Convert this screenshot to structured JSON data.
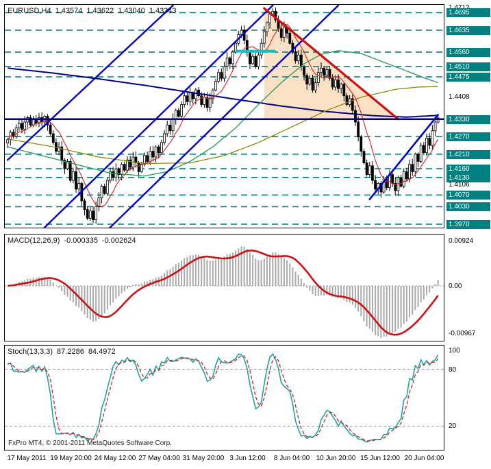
{
  "ui": {
    "title": {
      "symbol": "EURUSD,H4",
      "open": "1.43574",
      "high": "1.43622",
      "low": "1.43040",
      "close": "1.43343"
    },
    "macd_title": {
      "label": "MACD(12,26,9)",
      "main": "-0.000335",
      "signal": "-0.002624"
    },
    "stoch_title": {
      "label": "Stoch(13,3,3)",
      "k": "87.2286",
      "d": "84.4972"
    },
    "copyright": "FxPro MT4, © 2001-2011 MetaQuotes Software Corp."
  },
  "chart_data": [
    {
      "type": "candlestick",
      "symbol": "EURUSD",
      "timeframe": "H4",
      "x_labels": [
        "17 May 2011",
        "19 May 20:00",
        "24 May 12:00",
        "27 May 04:00",
        "31 May 20:00",
        "3 Jun 12:00",
        "8 Jun 04:00",
        "10 Jun 20:00",
        "15 Jun 12:00",
        "20 Jun 04:00"
      ],
      "price_range": [
        1.3958,
        1.4722
      ],
      "current_bar": {
        "open": 1.43574,
        "high": 1.43622,
        "low": 1.4304,
        "close": 1.43343
      },
      "first_open": 1.4248,
      "closes": [
        1.426,
        1.4285,
        1.427,
        1.43,
        1.4315,
        1.4295,
        1.432,
        1.4335,
        1.431,
        1.433,
        1.4315,
        1.4335,
        1.432,
        1.434,
        1.431,
        1.428,
        1.425,
        1.422,
        1.4235,
        1.419,
        1.416,
        1.4185,
        1.412,
        1.415,
        1.409,
        1.411,
        1.405,
        1.402,
        1.399,
        1.4015,
        1.3985,
        1.403,
        1.406,
        1.41,
        1.4075,
        1.412,
        1.415,
        1.413,
        1.416,
        1.414,
        1.4175,
        1.4155,
        1.419,
        1.4165,
        1.42,
        1.418,
        1.415,
        1.4175,
        1.4205,
        1.4185,
        1.422,
        1.42,
        1.4235,
        1.4215,
        1.425,
        1.428,
        1.431,
        1.429,
        1.433,
        1.436,
        1.434,
        1.438,
        1.441,
        1.439,
        1.442,
        1.44,
        1.443,
        1.441,
        1.438,
        1.4405,
        1.437,
        1.44,
        1.443,
        1.446,
        1.449,
        1.447,
        1.451,
        1.454,
        1.452,
        1.456,
        1.459,
        1.462,
        1.4635,
        1.46,
        1.456,
        1.452,
        1.4545,
        1.451,
        1.455,
        1.459,
        1.463,
        1.466,
        1.469,
        1.47,
        1.467,
        1.464,
        1.461,
        1.4645,
        1.4625,
        1.459,
        1.456,
        1.453,
        1.455,
        1.451,
        1.448,
        1.445,
        1.447,
        1.443,
        1.4455,
        1.449,
        1.4505,
        1.448,
        1.45,
        1.447,
        1.444,
        1.4465,
        1.4435,
        1.445,
        1.441,
        1.438,
        1.44,
        1.436,
        1.432,
        1.427,
        1.422,
        1.418,
        1.414,
        1.417,
        1.412,
        1.409,
        1.411,
        1.408,
        1.4125,
        1.4095,
        1.414,
        1.411,
        1.4085,
        1.413,
        1.41,
        1.415,
        1.4125,
        1.4175,
        1.415,
        1.421,
        1.4185,
        1.424,
        1.4215,
        1.4265,
        1.424,
        1.429,
        1.432,
        1.4334
      ],
      "support_resistance_levels": [
        1.4695,
        1.4635,
        1.456,
        1.451,
        1.4475,
        1.427,
        1.421,
        1.416,
        1.413,
        1.407,
        1.403,
        1.397
      ],
      "current_price_line": 1.433,
      "axis_ticks": [
        {
          "text": "1.4712",
          "price": 1.4712,
          "chip": false
        },
        {
          "text": "1.4695",
          "price": 1.4695,
          "chip": true
        },
        {
          "text": "1.4635",
          "price": 1.4635,
          "chip": true
        },
        {
          "text": "1.4560",
          "price": 1.456,
          "chip": true
        },
        {
          "text": "1.4510",
          "price": 1.451,
          "chip": true
        },
        {
          "text": "1.4475",
          "price": 1.4475,
          "chip": true
        },
        {
          "text": "1.4408",
          "price": 1.4408,
          "chip": false
        },
        {
          "text": "1.4330",
          "price": 1.433,
          "chip": true
        },
        {
          "text": "1.4270",
          "price": 1.427,
          "chip": true
        },
        {
          "text": "1.4210",
          "price": 1.421,
          "chip": true
        },
        {
          "text": "1.4160",
          "price": 1.416,
          "chip": true
        },
        {
          "text": "1.4130",
          "price": 1.413,
          "chip": true
        },
        {
          "text": "1.4106",
          "price": 1.4106,
          "chip": false
        },
        {
          "text": "1.4070",
          "price": 1.407,
          "chip": true
        },
        {
          "text": "1.4030",
          "price": 1.403,
          "chip": true
        },
        {
          "text": "1.3970",
          "price": 1.397,
          "chip": true
        }
      ],
      "moving_averages": {
        "fast_red": {
          "period": 8,
          "color": "#D43030"
        },
        "green": {
          "color": "#2E9E5B",
          "anchors": [
            [
              0,
              1.4235
            ],
            [
              12,
              1.4205
            ],
            [
              24,
              1.4175
            ],
            [
              36,
              1.4145
            ],
            [
              48,
              1.4135
            ],
            [
              56,
              1.415
            ],
            [
              64,
              1.4185
            ],
            [
              72,
              1.4235
            ],
            [
              80,
              1.43
            ],
            [
              88,
              1.438
            ],
            [
              96,
              1.4455
            ],
            [
              104,
              1.452
            ],
            [
              110,
              1.4552
            ],
            [
              116,
              1.4565
            ],
            [
              124,
              1.4555
            ],
            [
              132,
              1.4525
            ],
            [
              140,
              1.4495
            ],
            [
              146,
              1.4472
            ],
            [
              151,
              1.4455
            ]
          ]
        },
        "olive": {
          "color": "#8A8A00",
          "anchors": [
            [
              0,
              1.4262
            ],
            [
              16,
              1.4235
            ],
            [
              32,
              1.42
            ],
            [
              48,
              1.4178
            ],
            [
              64,
              1.418
            ],
            [
              76,
              1.4205
            ],
            [
              88,
              1.425
            ],
            [
              100,
              1.4305
            ],
            [
              112,
              1.436
            ],
            [
              124,
              1.4405
            ],
            [
              136,
              1.4432
            ],
            [
              144,
              1.444
            ],
            [
              151,
              1.4442
            ]
          ]
        },
        "navy": {
          "color": "#000080",
          "anchors": [
            [
              0,
              1.4505
            ],
            [
              16,
              1.4488
            ],
            [
              32,
              1.4468
            ],
            [
              48,
              1.4446
            ],
            [
              64,
              1.4422
            ],
            [
              80,
              1.4398
            ],
            [
              96,
              1.4375
            ],
            [
              112,
              1.4356
            ],
            [
              128,
              1.4342
            ],
            [
              140,
              1.4337
            ],
            [
              151,
              1.4343
            ]
          ]
        }
      },
      "trendlines": [
        {
          "name": "ascending-channel-1",
          "color": "#0000CC",
          "width": 2.4,
          "points": [
            [
              0,
              1.419
            ],
            [
              58,
              1.472
            ]
          ]
        },
        {
          "name": "ascending-channel-2",
          "color": "#0000CC",
          "width": 2.4,
          "points": [
            [
              11,
              1.394
            ],
            [
              93,
              1.472
            ]
          ]
        },
        {
          "name": "ascending-channel-3",
          "color": "#0000CC",
          "width": 2.4,
          "points": [
            [
              34,
              1.394
            ],
            [
              116,
              1.472
            ]
          ]
        },
        {
          "name": "ascending-support-june",
          "color": "#0000CC",
          "width": 2.6,
          "points": [
            [
              127,
              1.4055
            ],
            [
              151,
              1.4345
            ]
          ]
        },
        {
          "name": "descending-resistance",
          "color": "#D01010",
          "width": 3.2,
          "points": [
            [
              90,
              1.471
            ],
            [
              137,
              1.433
            ]
          ]
        }
      ],
      "shaded_triangle": {
        "color": "#F6CD9E",
        "opacity": 0.6,
        "points": [
          [
            90,
            1.471
          ],
          [
            137,
            1.433
          ],
          [
            90,
            1.433
          ]
        ]
      },
      "cyan_segment": {
        "color": "#00C8C8",
        "width": 4,
        "points": [
          [
            80,
            1.4563
          ],
          [
            94,
            1.4563
          ]
        ]
      }
    },
    {
      "type": "macd",
      "label": "MACD(12,26,9)",
      "main_value": -0.000335,
      "signal_value": -0.002624,
      "range": [
        -0.0112,
        0.0105
      ],
      "axis_ticks": [
        {
          "text": "0.00924",
          "value": 0.00924
        },
        {
          "text": "0.00",
          "value": 0
        },
        {
          "text": "-0.00967",
          "value": -0.00967
        }
      ],
      "colors": {
        "histogram": "#A9A9A9",
        "signal": "#D01010"
      }
    },
    {
      "type": "stochastic",
      "label": "Stoch(13,3,3)",
      "k_value": 87.2286,
      "d_value": 84.4972,
      "range": [
        0,
        100
      ],
      "levels": [
        80,
        20
      ],
      "axis_ticks": [
        {
          "text": "100",
          "value": 100
        },
        {
          "text": "80",
          "value": 80
        },
        {
          "text": "20",
          "value": 20
        }
      ],
      "colors": {
        "k": "#1FA3A3",
        "d": "#CC2020",
        "level": "#9A9A9A"
      }
    }
  ]
}
